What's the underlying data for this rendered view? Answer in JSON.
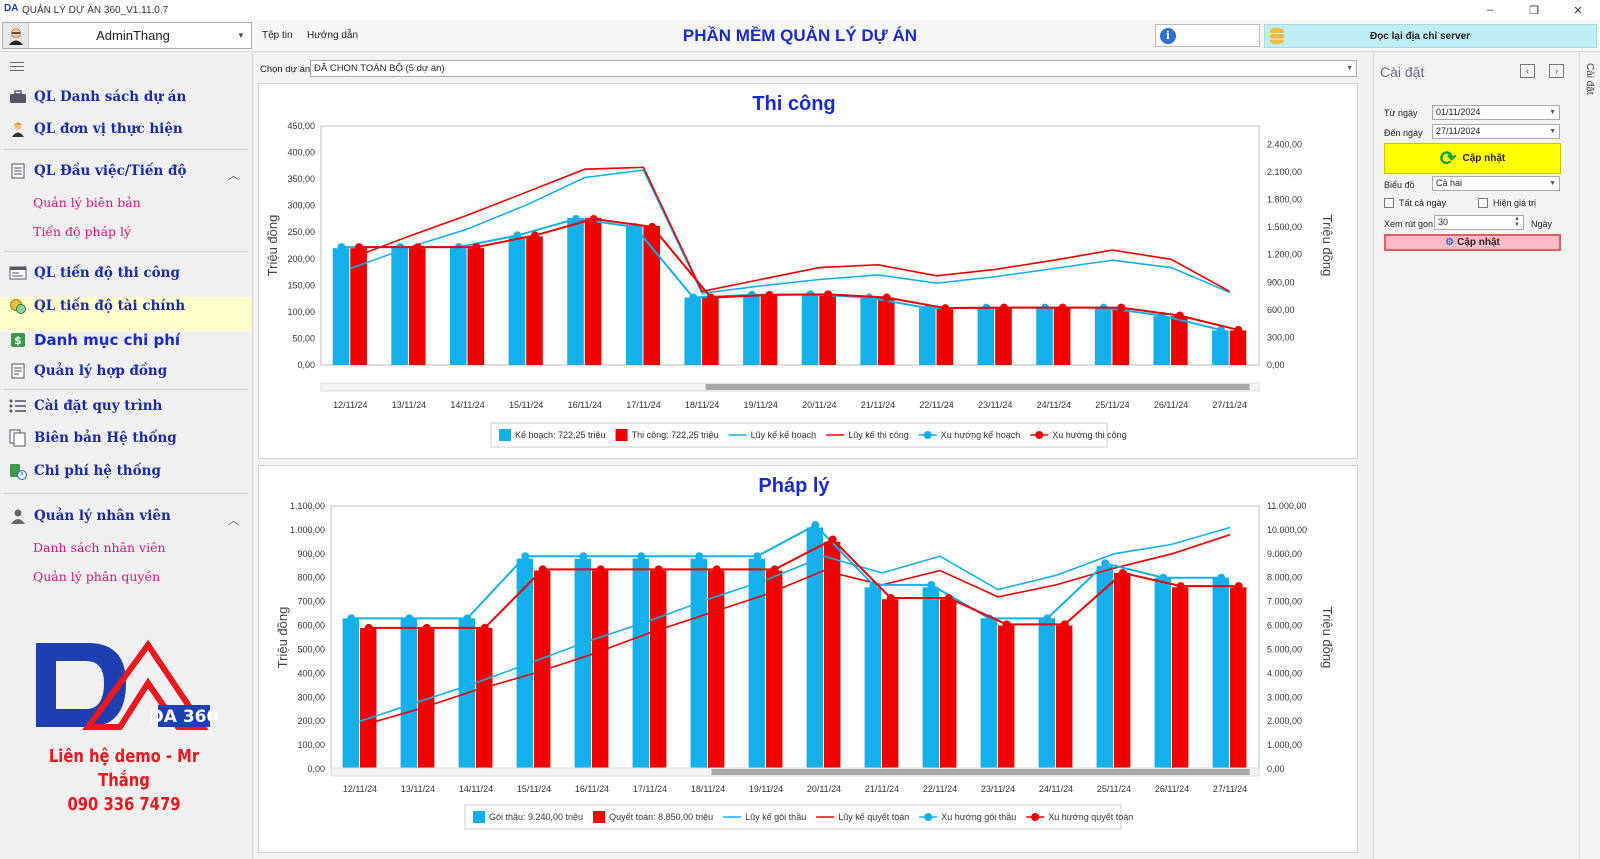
{
  "window": {
    "title": "QUẢN LÝ DỰ ÁN 360_V1.11.0.7",
    "controls": {
      "minimize": "–",
      "restore": "❐",
      "close": "✕"
    }
  },
  "topbar": {
    "user": "AdminThang",
    "menu": [
      "Tệp tin",
      "Hướng dẫn"
    ],
    "heading": "PHẦN MỀM QUẢN LÝ DỰ ÁN",
    "server_button": "Đọc lại địa chỉ server"
  },
  "sidebar": {
    "items": [
      {
        "id": "ds-du-an",
        "label": "QL Danh sách dự án",
        "icon": "briefcase-icon"
      },
      {
        "id": "don-vi",
        "label": "QL đơn vị thực hiện",
        "icon": "worker-icon"
      },
      {
        "id": "dau-viec",
        "label": "QL Đầu việc/Tiến độ",
        "icon": "document-icon"
      },
      {
        "id": "tien-do-thi-cong",
        "label": "QL tiến độ thi công",
        "icon": "window-icon"
      },
      {
        "id": "tien-do-tai-chinh",
        "label": "QL tiến độ tài chính",
        "icon": "coins-icon"
      },
      {
        "id": "danh-muc-chi-phi",
        "label": "Danh mục chi phí",
        "icon": "dollar-icon"
      },
      {
        "id": "hop-dong",
        "label": "Quản lý hợp đồng",
        "icon": "contract-icon"
      },
      {
        "id": "quy-trinh",
        "label": "Cài đặt quy trình",
        "icon": "list-icon"
      },
      {
        "id": "bien-ban",
        "label": "Biên bản Hệ thống",
        "icon": "pages-icon"
      },
      {
        "id": "chi-phi-he-thong",
        "label": "Chi phí hệ thống",
        "icon": "money-clock-icon"
      },
      {
        "id": "nhan-vien",
        "label": "Quản lý nhân viên",
        "icon": "person-icon"
      }
    ],
    "subitems": {
      "dau_viec": [
        "Quản lý biên bản",
        "Tiến độ pháp lý"
      ],
      "nhan_vien": [
        "Danh sách nhân viên",
        "Quản lý phân quyền"
      ]
    },
    "logo_text": "DA 360",
    "contact_line1": "Liên hệ demo - Mr Thắng",
    "contact_line2": "090 336 7479"
  },
  "main": {
    "project_label": "Chọn dự án",
    "project_value": "ĐÃ CHỌN TOÀN BỘ (5 dự án)"
  },
  "settings": {
    "title": "Cài đặt",
    "from_label": "Từ ngày",
    "from_value": "01/11/2024",
    "to_label": "Đến ngày",
    "to_value": "27/11/2024",
    "update_label": "Cập nhật",
    "chart_label": "Biểu đồ",
    "chart_value": "Cả hai",
    "all_days_label": "Tất cả ngày",
    "show_value_label": "Hiện giá trị",
    "compact_label": "Xem rút gọn",
    "compact_value": "30",
    "compact_unit": "Ngày",
    "update2_label": "Cập nhật",
    "side_tab": "Cài đặt"
  },
  "colors": {
    "blue": "#13b0ec",
    "red": "#ee0000",
    "heading": "#1a2ad0",
    "nav": "#1f2aa8",
    "sub": "#e0157a"
  },
  "chart_data": [
    {
      "type": "bar",
      "title": "Thi công",
      "ylabel": "Triệu đồng",
      "y2label": "Triệu đồng",
      "ylim": [
        0,
        450
      ],
      "y2lim": [
        0,
        2600
      ],
      "yticks": [
        "0,00",
        "50,00",
        "100,00",
        "150,00",
        "200,00",
        "250,00",
        "300,00",
        "350,00",
        "400,00",
        "450,00"
      ],
      "y2ticks": [
        "0,00",
        "300,00",
        "600,00",
        "900,00",
        "1.200,00",
        "1.500,00",
        "1.800,00",
        "2.100,00",
        "2.400,00"
      ],
      "categories": [
        "12/11/24",
        "13/11/24",
        "14/11/24",
        "15/11/24",
        "16/11/24",
        "17/11/24",
        "18/11/24",
        "19/11/24",
        "20/11/24",
        "21/11/24",
        "22/11/24",
        "23/11/24",
        "24/11/24",
        "25/11/24",
        "26/11/24",
        "27/11/24"
      ],
      "series": [
        {
          "name": "Kế hoạch: 722,25 triệu",
          "kind": "bar",
          "axis": "y",
          "values": [
            220,
            220,
            220,
            242,
            277,
            262,
            127,
            131,
            134,
            127,
            107,
            107,
            107,
            107,
            92,
            65
          ]
        },
        {
          "name": "Thi công: 722,25 triệu",
          "kind": "bar",
          "axis": "y",
          "values": [
            220,
            220,
            220,
            242,
            277,
            262,
            127,
            131,
            134,
            127,
            107,
            107,
            107,
            107,
            92,
            65
          ]
        },
        {
          "name": "Lũy kế kế hoạch",
          "kind": "line",
          "axis": "y2",
          "values": [
            1050,
            1280,
            1480,
            1740,
            2040,
            2120,
            780,
            860,
            930,
            980,
            890,
            960,
            1050,
            1140,
            1060,
            790
          ]
        },
        {
          "name": "Lũy kế thi công",
          "kind": "line",
          "axis": "y2",
          "values": [
            1160,
            1400,
            1630,
            1880,
            2130,
            2150,
            800,
            930,
            1060,
            1090,
            970,
            1040,
            1140,
            1250,
            1150,
            800
          ]
        },
        {
          "name": "Xu hướng kế hoạch",
          "kind": "trend",
          "axis": "y",
          "values": [
            222,
            222,
            222,
            244,
            275,
            260,
            127,
            132,
            133,
            127,
            107,
            108,
            108,
            108,
            93,
            66
          ]
        },
        {
          "name": "Xu hướng thi công",
          "kind": "trend",
          "axis": "y",
          "values": [
            222,
            222,
            222,
            244,
            275,
            260,
            127,
            132,
            133,
            127,
            107,
            108,
            108,
            108,
            93,
            66
          ]
        }
      ]
    },
    {
      "type": "bar",
      "title": "Pháp lý",
      "ylabel": "Triệu đồng",
      "y2label": "Triệu đồng",
      "ylim": [
        0,
        1100
      ],
      "y2lim": [
        0,
        11000
      ],
      "yticks": [
        "0,00",
        "100,00",
        "200,00",
        "300,00",
        "400,00",
        "500,00",
        "600,00",
        "700,00",
        "800,00",
        "900,00",
        "1.000,00",
        "1.100,00"
      ],
      "y2ticks": [
        "0,00",
        "1.000,00",
        "2.000,00",
        "3.000,00",
        "4.000,00",
        "5.000,00",
        "6.000,00",
        "7.000,00",
        "8.000,00",
        "9.000,00",
        "10.000,00",
        "11.000,00"
      ],
      "categories": [
        "12/11/24",
        "13/11/24",
        "14/11/24",
        "15/11/24",
        "16/11/24",
        "17/11/24",
        "18/11/24",
        "19/11/24",
        "20/11/24",
        "21/11/24",
        "22/11/24",
        "23/11/24",
        "24/11/24",
        "25/11/24",
        "26/11/24",
        "27/11/24"
      ],
      "series": [
        {
          "name": "Gói thầu: 9.240,00 triệu",
          "kind": "bar",
          "axis": "y",
          "values": [
            630,
            630,
            630,
            880,
            880,
            880,
            880,
            880,
            1010,
            760,
            760,
            630,
            630,
            850,
            800,
            800
          ]
        },
        {
          "name": "Quyết toán: 8.850,00 triệu",
          "kind": "bar",
          "axis": "y",
          "values": [
            590,
            590,
            590,
            830,
            830,
            830,
            830,
            830,
            950,
            710,
            710,
            600,
            600,
            820,
            760,
            760
          ]
        },
        {
          "name": "Lũy kế gói thầu",
          "kind": "line",
          "axis": "y2",
          "values": [
            2000,
            2800,
            3600,
            4500,
            5400,
            6200,
            7100,
            7900,
            8900,
            8200,
            8900,
            7500,
            8100,
            9000,
            9400,
            10100
          ]
        },
        {
          "name": "Lũy kế quyết toán",
          "kind": "line",
          "axis": "y2",
          "values": [
            1800,
            2500,
            3300,
            4000,
            4800,
            5700,
            6500,
            7300,
            8300,
            7700,
            8300,
            7200,
            7700,
            8400,
            9000,
            9800
          ]
        },
        {
          "name": "Xu hướng gói thầu",
          "kind": "trend",
          "axis": "y",
          "values": [
            630,
            630,
            630,
            890,
            890,
            890,
            890,
            890,
            1020,
            770,
            770,
            630,
            630,
            860,
            800,
            800
          ]
        },
        {
          "name": "Xu hướng quyết toán",
          "kind": "trend",
          "axis": "y",
          "values": [
            590,
            590,
            590,
            835,
            835,
            835,
            835,
            835,
            960,
            715,
            715,
            605,
            605,
            820,
            765,
            765
          ]
        }
      ]
    }
  ]
}
